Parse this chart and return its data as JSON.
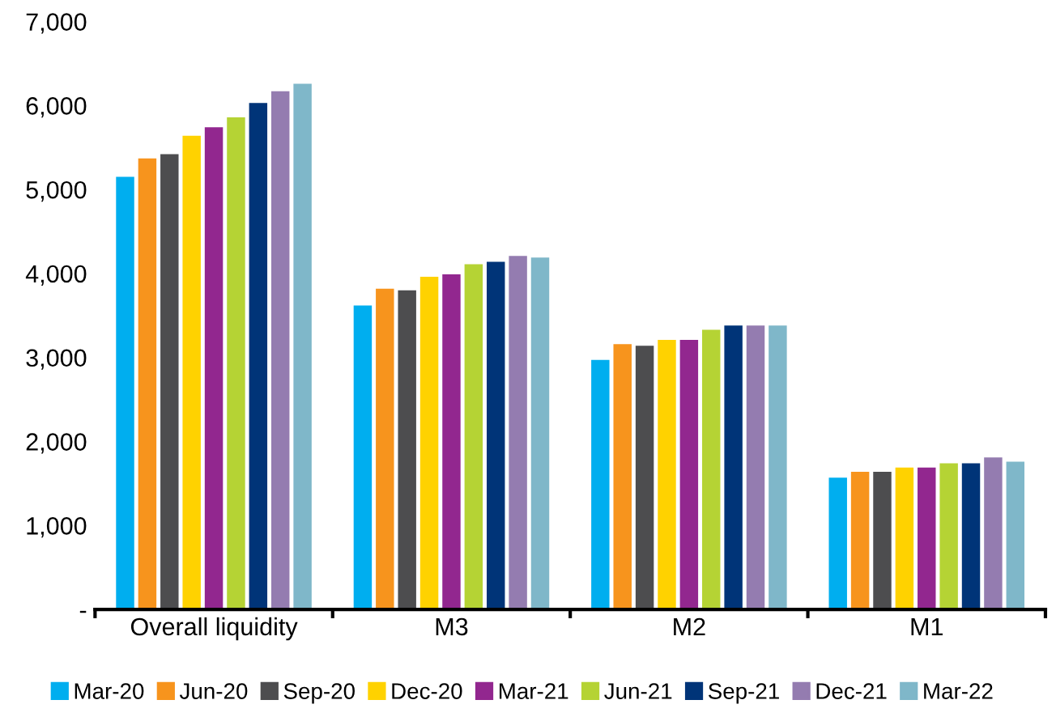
{
  "chart_data": {
    "type": "bar",
    "categories": [
      "Overall liquidity",
      "M3",
      "M2",
      "M1"
    ],
    "ylim": [
      0,
      7000
    ],
    "yticks": [
      {
        "value": 0,
        "label": "-"
      },
      {
        "value": 1000,
        "label": "1,000"
      },
      {
        "value": 2000,
        "label": "2,000"
      },
      {
        "value": 3000,
        "label": "3,000"
      },
      {
        "value": 4000,
        "label": "4,000"
      },
      {
        "value": 5000,
        "label": "5,000"
      },
      {
        "value": 6000,
        "label": "6,000"
      },
      {
        "value": 7000,
        "label": "7,000"
      }
    ],
    "grid": false,
    "legend": "bottom",
    "series": [
      {
        "name": "Mar-20",
        "color": "#00aeef",
        "values": [
          5150,
          3620,
          2970,
          1570
        ]
      },
      {
        "name": "Jun-20",
        "color": "#f7941d",
        "values": [
          5370,
          3820,
          3160,
          1640
        ]
      },
      {
        "name": "Sep-20",
        "color": "#4d4d4f",
        "values": [
          5420,
          3800,
          3140,
          1640
        ]
      },
      {
        "name": "Dec-20",
        "color": "#ffd200",
        "values": [
          5640,
          3960,
          3210,
          1690
        ]
      },
      {
        "name": "Mar-21",
        "color": "#92278f",
        "values": [
          5740,
          3990,
          3210,
          1690
        ]
      },
      {
        "name": "Jun-21",
        "color": "#b5d334",
        "values": [
          5860,
          4110,
          3330,
          1740
        ]
      },
      {
        "name": "Sep-21",
        "color": "#003478",
        "values": [
          6030,
          4140,
          3380,
          1740
        ]
      },
      {
        "name": "Dec-21",
        "color": "#947cb0",
        "values": [
          6170,
          4210,
          3380,
          1810
        ]
      },
      {
        "name": "Mar-22",
        "color": "#7fb7c9",
        "values": [
          6260,
          4190,
          3380,
          1760
        ]
      }
    ]
  }
}
